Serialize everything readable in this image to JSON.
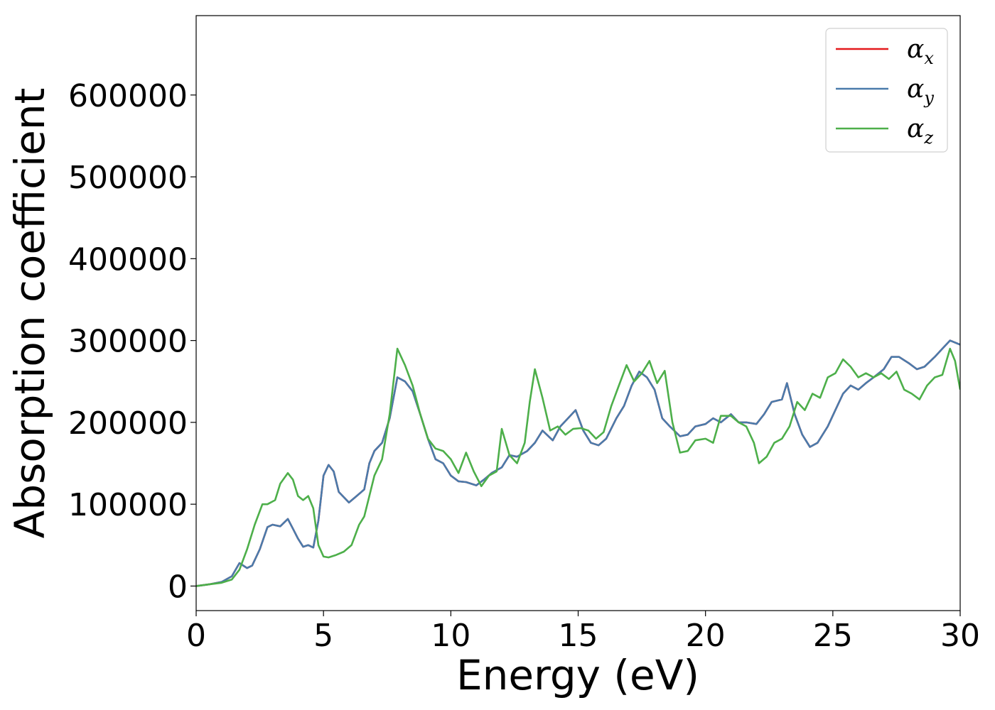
{
  "chart_data": {
    "type": "line",
    "title": "",
    "xlabel": "Energy (eV)",
    "ylabel": "Absorption coefficient",
    "xlim": [
      0,
      30
    ],
    "ylim": [
      -30000,
      697000
    ],
    "x_ticks": [
      0,
      5,
      10,
      15,
      20,
      25,
      30
    ],
    "y_ticks": [
      0,
      100000,
      200000,
      300000,
      400000,
      500000,
      600000
    ],
    "grid": false,
    "legend_position": "top-right",
    "series": [
      {
        "name": "αx",
        "legend_base": "α",
        "legend_sub": "x",
        "color": "#e41a1c",
        "x": [
          0,
          0.5,
          1.0,
          1.4,
          1.7,
          2.0,
          2.2,
          2.5,
          2.8,
          3.0,
          3.3,
          3.6,
          3.8,
          4.0,
          4.2,
          4.4,
          4.6,
          4.8,
          5.0,
          5.2,
          5.4,
          5.6,
          6.0,
          6.3,
          6.6,
          6.8,
          7.0,
          7.3,
          7.6,
          7.9,
          8.2,
          8.5,
          8.8,
          9.1,
          9.4,
          9.7,
          10.0,
          10.3,
          10.6,
          11.0,
          11.3,
          11.6,
          12.0,
          12.3,
          12.6,
          13.0,
          13.3,
          13.6,
          14.0,
          14.3,
          14.6,
          14.9,
          15.2,
          15.5,
          15.8,
          16.1,
          16.5,
          16.8,
          17.1,
          17.4,
          17.7,
          18.0,
          18.3,
          18.6,
          19.0,
          19.3,
          19.6,
          20.0,
          20.3,
          20.6,
          21.0,
          21.3,
          21.6,
          22.0,
          22.3,
          22.6,
          23.0,
          23.2,
          23.5,
          23.8,
          24.1,
          24.4,
          24.8,
          25.1,
          25.4,
          25.7,
          26.0,
          26.3,
          26.6,
          27.0,
          27.3,
          27.6,
          28.0,
          28.3,
          28.6,
          29.0,
          29.3,
          29.6,
          30.0
        ],
        "y": [
          0,
          2000,
          5000,
          12000,
          28000,
          22000,
          25000,
          45000,
          72000,
          75000,
          73000,
          82000,
          70000,
          58000,
          48000,
          50000,
          47000,
          80000,
          135000,
          148000,
          140000,
          115000,
          102000,
          110000,
          118000,
          150000,
          165000,
          175000,
          205000,
          255000,
          250000,
          238000,
          210000,
          180000,
          155000,
          150000,
          135000,
          128000,
          127000,
          123000,
          130000,
          138000,
          145000,
          160000,
          158000,
          165000,
          175000,
          190000,
          178000,
          195000,
          205000,
          215000,
          190000,
          175000,
          172000,
          180000,
          205000,
          220000,
          245000,
          262000,
          255000,
          240000,
          205000,
          195000,
          183000,
          185000,
          195000,
          198000,
          205000,
          200000,
          210000,
          200000,
          200000,
          198000,
          210000,
          225000,
          228000,
          248000,
          210000,
          185000,
          170000,
          175000,
          195000,
          215000,
          235000,
          245000,
          240000,
          248000,
          255000,
          265000,
          280000,
          280000,
          272000,
          265000,
          268000,
          280000,
          290000,
          300000,
          295000
        ]
      },
      {
        "name": "αy",
        "legend_base": "α",
        "legend_sub": "y",
        "color": "#4a7bab",
        "x": [
          0,
          0.5,
          1.0,
          1.4,
          1.7,
          2.0,
          2.2,
          2.5,
          2.8,
          3.0,
          3.3,
          3.6,
          3.8,
          4.0,
          4.2,
          4.4,
          4.6,
          4.8,
          5.0,
          5.2,
          5.4,
          5.6,
          6.0,
          6.3,
          6.6,
          6.8,
          7.0,
          7.3,
          7.6,
          7.9,
          8.2,
          8.5,
          8.8,
          9.1,
          9.4,
          9.7,
          10.0,
          10.3,
          10.6,
          11.0,
          11.3,
          11.6,
          12.0,
          12.3,
          12.6,
          13.0,
          13.3,
          13.6,
          14.0,
          14.3,
          14.6,
          14.9,
          15.2,
          15.5,
          15.8,
          16.1,
          16.5,
          16.8,
          17.1,
          17.4,
          17.7,
          18.0,
          18.3,
          18.6,
          19.0,
          19.3,
          19.6,
          20.0,
          20.3,
          20.6,
          21.0,
          21.3,
          21.6,
          22.0,
          22.3,
          22.6,
          23.0,
          23.2,
          23.5,
          23.8,
          24.1,
          24.4,
          24.8,
          25.1,
          25.4,
          25.7,
          26.0,
          26.3,
          26.6,
          27.0,
          27.3,
          27.6,
          28.0,
          28.3,
          28.6,
          29.0,
          29.3,
          29.6,
          30.0
        ],
        "y": [
          0,
          2000,
          5000,
          12000,
          28000,
          22000,
          25000,
          45000,
          72000,
          75000,
          73000,
          82000,
          70000,
          58000,
          48000,
          50000,
          47000,
          80000,
          135000,
          148000,
          140000,
          115000,
          102000,
          110000,
          118000,
          150000,
          165000,
          175000,
          205000,
          255000,
          250000,
          238000,
          210000,
          180000,
          155000,
          150000,
          135000,
          128000,
          127000,
          123000,
          130000,
          138000,
          145000,
          160000,
          158000,
          165000,
          175000,
          190000,
          178000,
          195000,
          205000,
          215000,
          190000,
          175000,
          172000,
          180000,
          205000,
          220000,
          245000,
          262000,
          255000,
          240000,
          205000,
          195000,
          183000,
          185000,
          195000,
          198000,
          205000,
          200000,
          210000,
          200000,
          200000,
          198000,
          210000,
          225000,
          228000,
          248000,
          210000,
          185000,
          170000,
          175000,
          195000,
          215000,
          235000,
          245000,
          240000,
          248000,
          255000,
          265000,
          280000,
          280000,
          272000,
          265000,
          268000,
          280000,
          290000,
          300000,
          295000
        ]
      },
      {
        "name": "αz",
        "legend_base": "α",
        "legend_sub": "z",
        "color": "#4daf4a",
        "x": [
          0,
          0.5,
          1.0,
          1.4,
          1.7,
          2.0,
          2.3,
          2.6,
          2.8,
          3.1,
          3.3,
          3.6,
          3.8,
          4.0,
          4.2,
          4.4,
          4.6,
          4.8,
          5.0,
          5.2,
          5.5,
          5.8,
          6.1,
          6.4,
          6.6,
          6.8,
          7.0,
          7.3,
          7.6,
          7.9,
          8.2,
          8.5,
          8.8,
          9.1,
          9.4,
          9.7,
          10.0,
          10.3,
          10.6,
          10.9,
          11.2,
          11.5,
          11.8,
          12.0,
          12.3,
          12.6,
          12.9,
          13.1,
          13.3,
          13.6,
          13.9,
          14.2,
          14.5,
          14.8,
          15.1,
          15.4,
          15.7,
          16.0,
          16.3,
          16.6,
          16.9,
          17.2,
          17.5,
          17.8,
          18.1,
          18.4,
          18.7,
          19.0,
          19.3,
          19.6,
          20.0,
          20.3,
          20.6,
          21.0,
          21.3,
          21.6,
          21.9,
          22.1,
          22.4,
          22.7,
          23.0,
          23.3,
          23.6,
          23.9,
          24.2,
          24.5,
          24.8,
          25.1,
          25.4,
          25.7,
          26.0,
          26.3,
          26.6,
          26.9,
          27.2,
          27.5,
          27.8,
          28.1,
          28.4,
          28.7,
          29.0,
          29.3,
          29.6,
          29.8,
          30.0
        ],
        "y": [
          0,
          2000,
          4000,
          8000,
          20000,
          45000,
          75000,
          100000,
          100000,
          105000,
          125000,
          138000,
          130000,
          110000,
          105000,
          110000,
          95000,
          50000,
          36000,
          35000,
          38000,
          42000,
          50000,
          75000,
          85000,
          110000,
          135000,
          155000,
          210000,
          290000,
          270000,
          245000,
          210000,
          180000,
          168000,
          165000,
          155000,
          138000,
          163000,
          140000,
          122000,
          135000,
          140000,
          192000,
          160000,
          150000,
          175000,
          225000,
          265000,
          230000,
          190000,
          195000,
          185000,
          192000,
          193000,
          190000,
          180000,
          188000,
          220000,
          245000,
          270000,
          250000,
          260000,
          275000,
          248000,
          263000,
          200000,
          163000,
          165000,
          178000,
          180000,
          175000,
          208000,
          208000,
          200000,
          195000,
          175000,
          150000,
          158000,
          175000,
          180000,
          195000,
          225000,
          215000,
          235000,
          230000,
          255000,
          260000,
          277000,
          268000,
          255000,
          260000,
          255000,
          260000,
          253000,
          262000,
          240000,
          235000,
          228000,
          245000,
          255000,
          258000,
          290000,
          275000,
          240000
        ]
      }
    ]
  }
}
